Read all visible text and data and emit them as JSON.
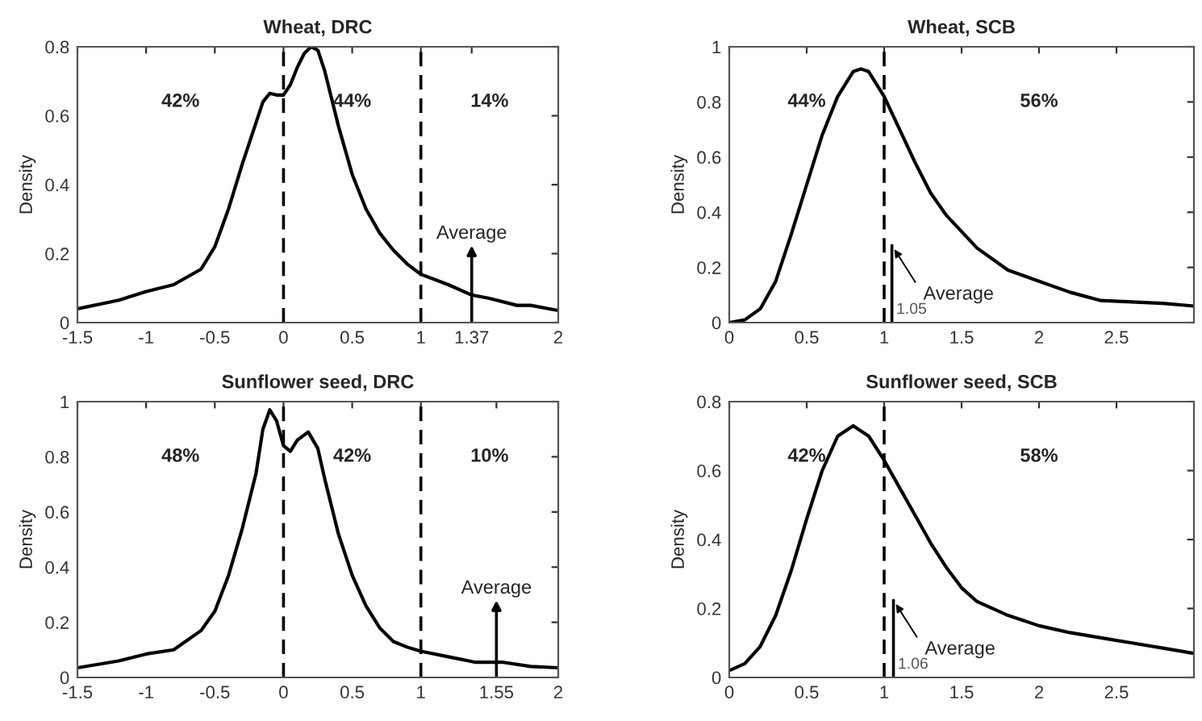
{
  "chart_data": [
    {
      "type": "line",
      "title": "Wheat, DRC",
      "ylabel": "Density",
      "color": "#000000",
      "x": [
        -1.5,
        -1.2,
        -1.0,
        -0.8,
        -0.6,
        -0.5,
        -0.4,
        -0.3,
        -0.2,
        -0.15,
        -0.1,
        -0.05,
        0,
        0.05,
        0.1,
        0.15,
        0.2,
        0.25,
        0.3,
        0.4,
        0.5,
        0.6,
        0.7,
        0.8,
        0.9,
        1.0,
        1.2,
        1.37,
        1.5,
        1.7,
        1.8,
        2.0
      ],
      "values": [
        0.04,
        0.065,
        0.09,
        0.11,
        0.155,
        0.22,
        0.33,
        0.46,
        0.58,
        0.64,
        0.665,
        0.66,
        0.66,
        0.69,
        0.74,
        0.78,
        0.8,
        0.79,
        0.73,
        0.57,
        0.43,
        0.33,
        0.26,
        0.21,
        0.17,
        0.14,
        0.11,
        0.08,
        0.07,
        0.05,
        0.05,
        0.035
      ],
      "xlim": [
        -1.5,
        2
      ],
      "ylim": [
        0,
        0.8
      ],
      "xticks": [
        -1.5,
        -1,
        -0.5,
        0,
        0.5,
        1,
        1.37,
        2
      ],
      "yticks": [
        0,
        0.2,
        0.4,
        0.6,
        0.8
      ],
      "ref_lines": [
        {
          "axis": "x",
          "value": 0,
          "line_style": "dashed"
        },
        {
          "axis": "x",
          "value": 1,
          "line_style": "dashed"
        },
        {
          "axis": "x",
          "value": 1.37,
          "label": "Average",
          "line_style": "solid"
        }
      ],
      "annotations": [
        "42%",
        "44%",
        "14%"
      ]
    },
    {
      "type": "line",
      "title": "Wheat, SCB",
      "ylabel": "Density",
      "color": "#000000",
      "x": [
        0,
        0.1,
        0.2,
        0.3,
        0.4,
        0.5,
        0.6,
        0.7,
        0.8,
        0.85,
        0.9,
        1.0,
        1.1,
        1.2,
        1.3,
        1.4,
        1.5,
        1.6,
        1.8,
        2.0,
        2.2,
        2.4,
        2.6,
        2.8,
        3.0
      ],
      "values": [
        0,
        0.01,
        0.05,
        0.15,
        0.32,
        0.5,
        0.68,
        0.82,
        0.91,
        0.92,
        0.91,
        0.82,
        0.7,
        0.58,
        0.47,
        0.39,
        0.33,
        0.27,
        0.19,
        0.15,
        0.11,
        0.08,
        0.075,
        0.07,
        0.06
      ],
      "xlim": [
        0,
        3
      ],
      "ylim": [
        0,
        1
      ],
      "xticks": [
        0,
        0.5,
        1,
        1.5,
        2,
        2.5
      ],
      "yticks": [
        0,
        0.2,
        0.4,
        0.6,
        0.8,
        1
      ],
      "ref_lines": [
        {
          "axis": "x",
          "value": 1,
          "line_style": "dashed"
        },
        {
          "axis": "x",
          "value": 1.05,
          "label": "Average",
          "line_style": "solid"
        }
      ],
      "annotations": [
        "44%",
        "56%",
        "1.05"
      ]
    },
    {
      "type": "line",
      "title": "Sunflower seed, DRC",
      "ylabel": "Density",
      "color": "#000000",
      "x": [
        -1.5,
        -1.2,
        -1.0,
        -0.8,
        -0.6,
        -0.5,
        -0.4,
        -0.3,
        -0.2,
        -0.15,
        -0.1,
        -0.05,
        0,
        0.05,
        0.1,
        0.18,
        0.25,
        0.3,
        0.4,
        0.5,
        0.6,
        0.7,
        0.8,
        0.9,
        1.0,
        1.2,
        1.4,
        1.6,
        1.8,
        2.0
      ],
      "values": [
        0.035,
        0.06,
        0.085,
        0.1,
        0.17,
        0.24,
        0.37,
        0.54,
        0.74,
        0.9,
        0.97,
        0.93,
        0.84,
        0.82,
        0.86,
        0.89,
        0.83,
        0.72,
        0.52,
        0.37,
        0.26,
        0.18,
        0.13,
        0.11,
        0.095,
        0.075,
        0.055,
        0.055,
        0.04,
        0.035
      ],
      "xlim": [
        -1.5,
        2
      ],
      "ylim": [
        0,
        1
      ],
      "xticks": [
        -1.5,
        -1,
        -0.5,
        0,
        0.5,
        1,
        1.55,
        2
      ],
      "yticks": [
        0,
        0.2,
        0.4,
        0.6,
        0.8,
        1
      ],
      "ref_lines": [
        {
          "axis": "x",
          "value": 0,
          "line_style": "dashed"
        },
        {
          "axis": "x",
          "value": 1,
          "line_style": "dashed"
        },
        {
          "axis": "x",
          "value": 1.55,
          "label": "Average",
          "line_style": "solid"
        }
      ],
      "annotations": [
        "48%",
        "42%",
        "10%"
      ]
    },
    {
      "type": "line",
      "title": "Sunflower seed, SCB",
      "ylabel": "Density",
      "color": "#000000",
      "x": [
        0,
        0.1,
        0.2,
        0.3,
        0.4,
        0.5,
        0.6,
        0.7,
        0.8,
        0.9,
        1.0,
        1.1,
        1.2,
        1.3,
        1.4,
        1.5,
        1.6,
        1.8,
        2.0,
        2.2,
        2.4,
        2.6,
        2.8,
        3.0
      ],
      "values": [
        0.02,
        0.04,
        0.09,
        0.18,
        0.31,
        0.46,
        0.6,
        0.7,
        0.73,
        0.7,
        0.63,
        0.55,
        0.47,
        0.39,
        0.32,
        0.26,
        0.22,
        0.18,
        0.15,
        0.13,
        0.115,
        0.1,
        0.085,
        0.07
      ],
      "xlim": [
        0,
        3
      ],
      "ylim": [
        0,
        0.8
      ],
      "xticks": [
        0,
        0.5,
        1,
        1.5,
        2,
        2.5
      ],
      "yticks": [
        0,
        0.2,
        0.4,
        0.6,
        0.8
      ],
      "ref_lines": [
        {
          "axis": "x",
          "value": 1,
          "line_style": "dashed"
        },
        {
          "axis": "x",
          "value": 1.06,
          "label": "Average",
          "line_style": "solid"
        }
      ],
      "annotations": [
        "42%",
        "58%",
        "1.06"
      ]
    }
  ]
}
